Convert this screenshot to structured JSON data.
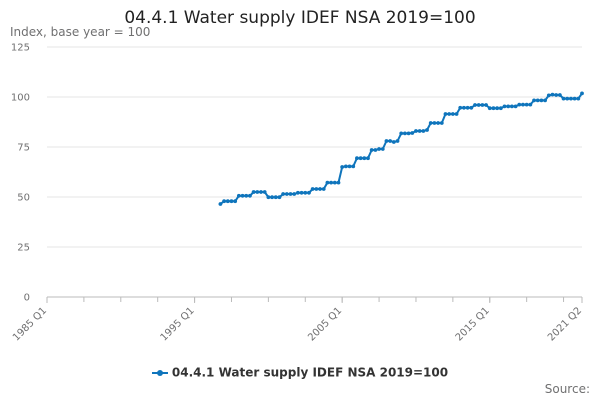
{
  "title": "04.4.1 Water supply IDEF NSA 2019=100",
  "source_label": "Source:",
  "chart_data": {
    "type": "line",
    "title": "04.4.1 Water supply IDEF NSA 2019=100",
    "ylabel": "Index, base year = 100",
    "xlabel": "",
    "x_type": "quarterly",
    "xlim": [
      1985.0,
      2021.25
    ],
    "ylim": [
      0,
      125
    ],
    "y_ticks": [
      0,
      25,
      50,
      75,
      100,
      125
    ],
    "x_ticks": [
      {
        "label": "1985 Q1",
        "t": 1985.0
      },
      {
        "label": "1995 Q1",
        "t": 1995.0
      },
      {
        "label": "2005 Q1",
        "t": 2005.0
      },
      {
        "label": "2015 Q1",
        "t": 2015.0
      },
      {
        "label": "2021 Q2",
        "t": 2021.25
      }
    ],
    "grid": "horizontal",
    "legend": "bottom",
    "colors": {
      "series": "#0f75bc",
      "grid": "#e6e6e6",
      "axis": "#bbbbbb"
    },
    "series": [
      {
        "name": "04.4.1 Water supply IDEF NSA 2019=100",
        "points": [
          [
            "1996 Q4",
            46.5
          ],
          [
            "1997 Q1",
            47.9
          ],
          [
            "1997 Q2",
            47.9
          ],
          [
            "1997 Q3",
            47.9
          ],
          [
            "1997 Q4",
            47.9
          ],
          [
            "1998 Q1",
            50.6
          ],
          [
            "1998 Q2",
            50.6
          ],
          [
            "1998 Q3",
            50.6
          ],
          [
            "1998 Q4",
            50.6
          ],
          [
            "1999 Q1",
            52.5
          ],
          [
            "1999 Q2",
            52.5
          ],
          [
            "1999 Q3",
            52.5
          ],
          [
            "1999 Q4",
            52.5
          ],
          [
            "2000 Q1",
            49.9
          ],
          [
            "2000 Q2",
            49.9
          ],
          [
            "2000 Q3",
            49.9
          ],
          [
            "2000 Q4",
            49.9
          ],
          [
            "2001 Q1",
            51.5
          ],
          [
            "2001 Q2",
            51.5
          ],
          [
            "2001 Q3",
            51.5
          ],
          [
            "2001 Q4",
            51.5
          ],
          [
            "2002 Q1",
            52.1
          ],
          [
            "2002 Q2",
            52.1
          ],
          [
            "2002 Q3",
            52.1
          ],
          [
            "2002 Q4",
            52.1
          ],
          [
            "2003 Q1",
            54.0
          ],
          [
            "2003 Q2",
            54.0
          ],
          [
            "2003 Q3",
            54.0
          ],
          [
            "2003 Q4",
            54.0
          ],
          [
            "2004 Q1",
            57.2
          ],
          [
            "2004 Q2",
            57.2
          ],
          [
            "2004 Q3",
            57.2
          ],
          [
            "2004 Q4",
            57.2
          ],
          [
            "2005 Q1",
            65.0
          ],
          [
            "2005 Q2",
            65.3
          ],
          [
            "2005 Q3",
            65.3
          ],
          [
            "2005 Q4",
            65.3
          ],
          [
            "2006 Q1",
            69.4
          ],
          [
            "2006 Q2",
            69.4
          ],
          [
            "2006 Q3",
            69.4
          ],
          [
            "2006 Q4",
            69.4
          ],
          [
            "2007 Q1",
            73.5
          ],
          [
            "2007 Q2",
            73.5
          ],
          [
            "2007 Q3",
            74.0
          ],
          [
            "2007 Q4",
            74.0
          ],
          [
            "2008 Q1",
            78.0
          ],
          [
            "2008 Q2",
            78.0
          ],
          [
            "2008 Q3",
            77.5
          ],
          [
            "2008 Q4",
            78.0
          ],
          [
            "2009 Q1",
            81.8
          ],
          [
            "2009 Q2",
            81.8
          ],
          [
            "2009 Q3",
            81.8
          ],
          [
            "2009 Q4",
            82.0
          ],
          [
            "2010 Q1",
            83.0
          ],
          [
            "2010 Q2",
            83.0
          ],
          [
            "2010 Q3",
            83.0
          ],
          [
            "2010 Q4",
            83.5
          ],
          [
            "2011 Q1",
            87.0
          ],
          [
            "2011 Q2",
            87.0
          ],
          [
            "2011 Q3",
            87.0
          ],
          [
            "2011 Q4",
            87.0
          ],
          [
            "2012 Q1",
            91.5
          ],
          [
            "2012 Q2",
            91.5
          ],
          [
            "2012 Q3",
            91.5
          ],
          [
            "2012 Q4",
            91.5
          ],
          [
            "2013 Q1",
            94.6
          ],
          [
            "2013 Q2",
            94.6
          ],
          [
            "2013 Q3",
            94.6
          ],
          [
            "2013 Q4",
            94.6
          ],
          [
            "2014 Q1",
            96.0
          ],
          [
            "2014 Q2",
            96.0
          ],
          [
            "2014 Q3",
            96.0
          ],
          [
            "2014 Q4",
            96.0
          ],
          [
            "2015 Q1",
            94.4
          ],
          [
            "2015 Q2",
            94.4
          ],
          [
            "2015 Q3",
            94.4
          ],
          [
            "2015 Q4",
            94.4
          ],
          [
            "2016 Q1",
            95.3
          ],
          [
            "2016 Q2",
            95.3
          ],
          [
            "2016 Q3",
            95.3
          ],
          [
            "2016 Q4",
            95.3
          ],
          [
            "2017 Q1",
            96.2
          ],
          [
            "2017 Q2",
            96.2
          ],
          [
            "2017 Q3",
            96.2
          ],
          [
            "2017 Q4",
            96.2
          ],
          [
            "2018 Q1",
            98.3
          ],
          [
            "2018 Q2",
            98.3
          ],
          [
            "2018 Q3",
            98.3
          ],
          [
            "2018 Q4",
            98.3
          ],
          [
            "2019 Q1",
            100.8
          ],
          [
            "2019 Q2",
            101.2
          ],
          [
            "2019 Q3",
            101.0
          ],
          [
            "2019 Q4",
            101.0
          ],
          [
            "2020 Q1",
            99.2
          ],
          [
            "2020 Q2",
            99.2
          ],
          [
            "2020 Q3",
            99.2
          ],
          [
            "2020 Q4",
            99.2
          ],
          [
            "2021 Q1",
            99.2
          ],
          [
            "2021 Q2",
            101.8
          ]
        ]
      }
    ]
  }
}
